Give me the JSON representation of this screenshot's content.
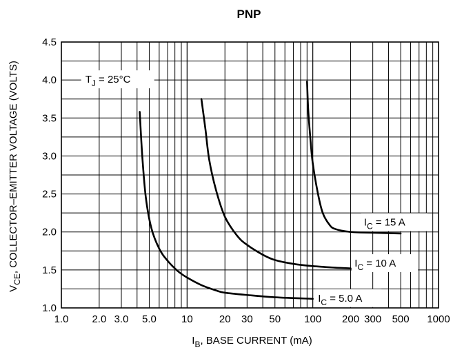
{
  "chart_data": {
    "type": "line",
    "title": "PNP",
    "xlabel": {
      "main": "I",
      "sub": "B",
      "rest": ", BASE CURRENT (mA)"
    },
    "ylabel": {
      "main": "V",
      "sub": "CE",
      "rest": ", COLLECTOR–EMITTER VOLTAGE (VOLTS)"
    },
    "x_scale": "log",
    "xlim": [
      1,
      1000
    ],
    "ylim": [
      1.0,
      4.5
    ],
    "grid": true,
    "x_ticks": [
      {
        "v": 1,
        "label": "1.0"
      },
      {
        "v": 2,
        "label": "2.0"
      },
      {
        "v": 3,
        "label": "3.0"
      },
      {
        "v": 5,
        "label": "5.0"
      },
      {
        "v": 10,
        "label": "10"
      },
      {
        "v": 20,
        "label": "20"
      },
      {
        "v": 30,
        "label": "30"
      },
      {
        "v": 50,
        "label": "50"
      },
      {
        "v": 100,
        "label": "100"
      },
      {
        "v": 200,
        "label": "200"
      },
      {
        "v": 300,
        "label": "300"
      },
      {
        "v": 500,
        "label": "500"
      },
      {
        "v": 1000,
        "label": "1000"
      }
    ],
    "y_ticks": [
      {
        "v": 1.0,
        "label": "1.0"
      },
      {
        "v": 1.5,
        "label": "1.5"
      },
      {
        "v": 2.0,
        "label": "2.0"
      },
      {
        "v": 2.5,
        "label": "2.5"
      },
      {
        "v": 3.0,
        "label": "3.0"
      },
      {
        "v": 3.5,
        "label": "3.5"
      },
      {
        "v": 4.0,
        "label": "4.0"
      },
      {
        "v": 4.5,
        "label": "4.5"
      }
    ],
    "annotation": {
      "main": "T",
      "sub": "J",
      "rest": " = 25°C",
      "x": 1.55,
      "y": 4.0
    },
    "series": [
      {
        "label": {
          "main": "I",
          "sub": "C",
          "rest": " = 5.0 A"
        },
        "label_at": {
          "x": 110,
          "y": 1.12
        },
        "points": [
          [
            4.2,
            3.58
          ],
          [
            4.4,
            3.0
          ],
          [
            4.7,
            2.45
          ],
          [
            5.2,
            2.05
          ],
          [
            6,
            1.78
          ],
          [
            7,
            1.62
          ],
          [
            8.5,
            1.48
          ],
          [
            10,
            1.4
          ],
          [
            13,
            1.3
          ],
          [
            17,
            1.23
          ],
          [
            20,
            1.2
          ],
          [
            30,
            1.17
          ],
          [
            50,
            1.14
          ],
          [
            100,
            1.12
          ]
        ]
      },
      {
        "label": {
          "main": "I",
          "sub": "C",
          "rest": " = 10 A"
        },
        "label_at": {
          "x": 215,
          "y": 1.58
        },
        "points": [
          [
            13,
            3.75
          ],
          [
            14,
            3.35
          ],
          [
            15,
            2.95
          ],
          [
            17,
            2.55
          ],
          [
            20,
            2.2
          ],
          [
            25,
            1.95
          ],
          [
            30,
            1.83
          ],
          [
            40,
            1.7
          ],
          [
            50,
            1.63
          ],
          [
            70,
            1.58
          ],
          [
            100,
            1.55
          ],
          [
            150,
            1.53
          ],
          [
            200,
            1.52
          ]
        ]
      },
      {
        "label": {
          "main": "I",
          "sub": "C",
          "rest": " = 15 A"
        },
        "label_at": {
          "x": 255,
          "y": 2.12
        },
        "points": [
          [
            90,
            3.98
          ],
          [
            92,
            3.6
          ],
          [
            96,
            3.2
          ],
          [
            100,
            2.9
          ],
          [
            110,
            2.5
          ],
          [
            120,
            2.25
          ],
          [
            135,
            2.1
          ],
          [
            150,
            2.04
          ],
          [
            200,
            2.0
          ],
          [
            300,
            1.99
          ],
          [
            500,
            1.98
          ]
        ]
      }
    ]
  }
}
